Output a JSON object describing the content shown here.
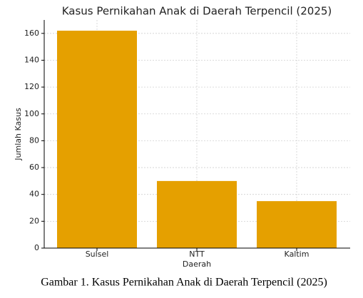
{
  "chart_data": {
    "type": "bar",
    "title": "Kasus Pernikahan Anak di Daerah Terpencil (2025)",
    "x_label": "Daerah",
    "y_label": "Jumlah Kasus",
    "categories": [
      "Sulsel",
      "NTT",
      "Kaltim"
    ],
    "values": [
      162,
      50,
      35
    ],
    "color": "#e5a000",
    "ylim": [
      0,
      170
    ],
    "yticks": [
      0,
      20,
      40,
      60,
      80,
      100,
      120,
      140,
      160
    ],
    "grid": true
  },
  "caption": "Gambar 1. Kasus Pernikahan Anak di Daerah Terpencil (2025)"
}
